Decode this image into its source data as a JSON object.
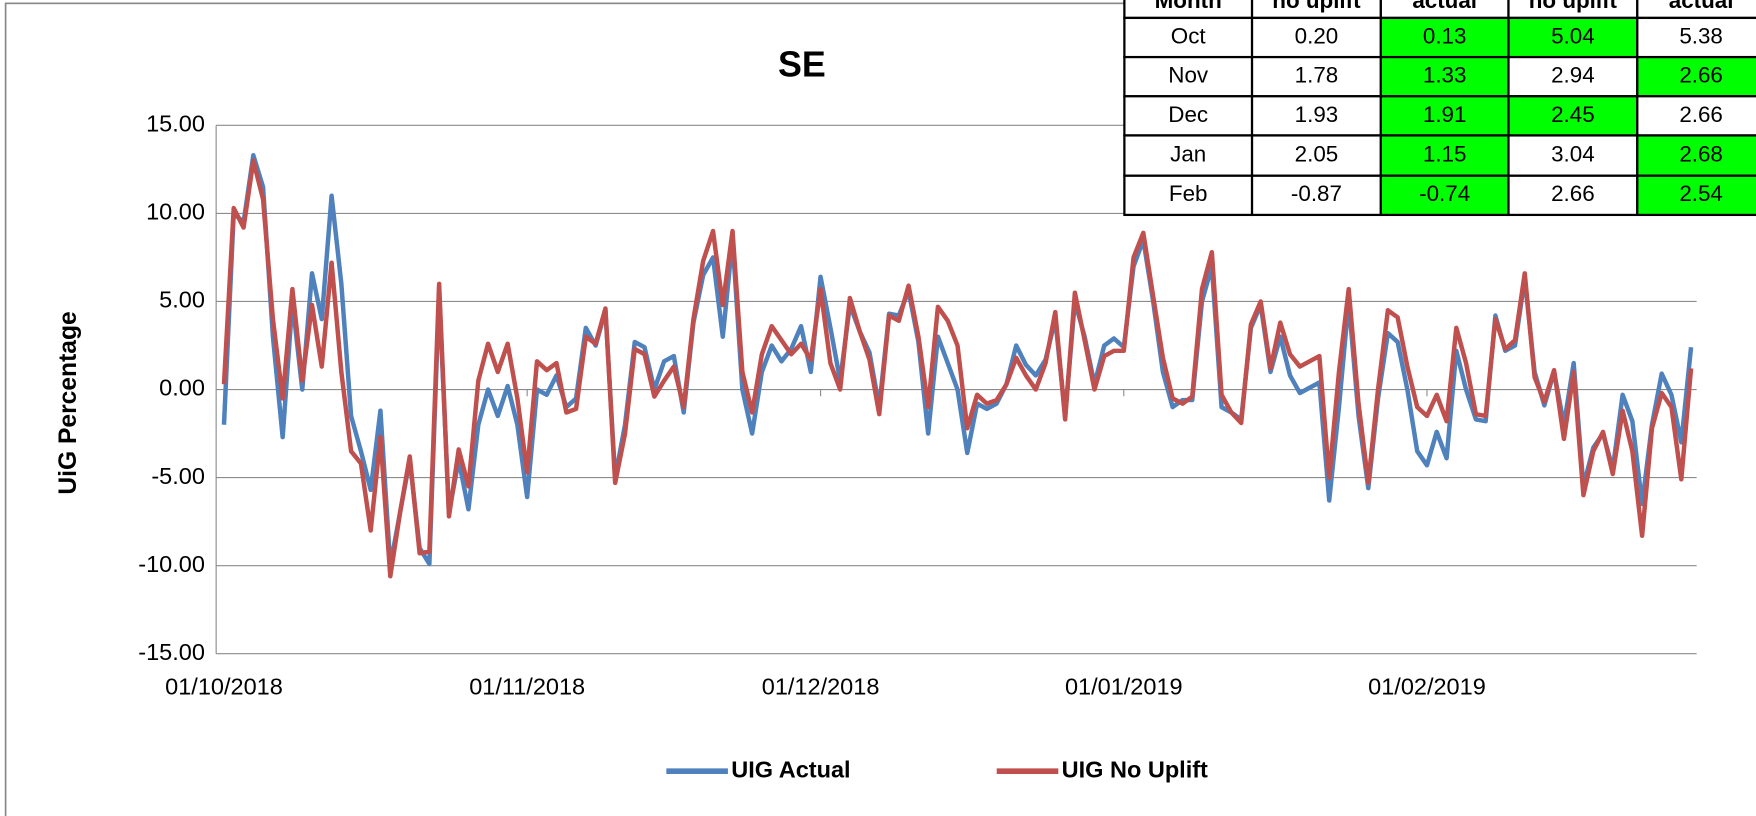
{
  "chart_data": {
    "type": "line",
    "title": "SE",
    "y_label": "UiG Percentage",
    "x": [
      "01/10/2018",
      "02/10/2018",
      "03/10/2018",
      "04/10/2018",
      "05/10/2018",
      "06/10/2018",
      "07/10/2018",
      "08/10/2018",
      "09/10/2018",
      "10/10/2018",
      "11/10/2018",
      "12/10/2018",
      "13/10/2018",
      "14/10/2018",
      "15/10/2018",
      "16/10/2018",
      "17/10/2018",
      "18/10/2018",
      "19/10/2018",
      "20/10/2018",
      "21/10/2018",
      "22/10/2018",
      "23/10/2018",
      "24/10/2018",
      "25/10/2018",
      "26/10/2018",
      "27/10/2018",
      "28/10/2018",
      "29/10/2018",
      "30/10/2018",
      "31/10/2018",
      "01/11/2018",
      "02/11/2018",
      "03/11/2018",
      "04/11/2018",
      "05/11/2018",
      "06/11/2018",
      "07/11/2018",
      "08/11/2018",
      "09/11/2018",
      "10/11/2018",
      "11/11/2018",
      "12/11/2018",
      "13/11/2018",
      "14/11/2018",
      "15/11/2018",
      "16/11/2018",
      "17/11/2018",
      "18/11/2018",
      "19/11/2018",
      "20/11/2018",
      "21/11/2018",
      "22/11/2018",
      "23/11/2018",
      "24/11/2018",
      "25/11/2018",
      "26/11/2018",
      "27/11/2018",
      "28/11/2018",
      "29/11/2018",
      "30/11/2018",
      "01/12/2018",
      "02/12/2018",
      "03/12/2018",
      "04/12/2018",
      "05/12/2018",
      "06/12/2018",
      "07/12/2018",
      "08/12/2018",
      "09/12/2018",
      "10/12/2018",
      "11/12/2018",
      "12/12/2018",
      "13/12/2018",
      "14/12/2018",
      "15/12/2018",
      "16/12/2018",
      "17/12/2018",
      "18/12/2018",
      "19/12/2018",
      "20/12/2018",
      "21/12/2018",
      "22/12/2018",
      "23/12/2018",
      "24/12/2018",
      "25/12/2018",
      "26/12/2018",
      "27/12/2018",
      "28/12/2018",
      "29/12/2018",
      "30/12/2018",
      "31/12/2018",
      "01/01/2019",
      "02/01/2019",
      "03/01/2019",
      "04/01/2019",
      "05/01/2019",
      "06/01/2019",
      "07/01/2019",
      "08/01/2019",
      "09/01/2019",
      "10/01/2019",
      "11/01/2019",
      "12/01/2019",
      "13/01/2019",
      "14/01/2019",
      "15/01/2019",
      "16/01/2019",
      "17/01/2019",
      "18/01/2019",
      "19/01/2019",
      "20/01/2019",
      "21/01/2019",
      "22/01/2019",
      "23/01/2019",
      "24/01/2019",
      "25/01/2019",
      "26/01/2019",
      "27/01/2019",
      "28/01/2019",
      "29/01/2019",
      "30/01/2019",
      "31/01/2019",
      "01/02/2019",
      "02/02/2019",
      "03/02/2019",
      "04/02/2019",
      "05/02/2019",
      "06/02/2019",
      "07/02/2019",
      "08/02/2019",
      "09/02/2019",
      "10/02/2019",
      "11/02/2019",
      "12/02/2019",
      "13/02/2019",
      "14/02/2019",
      "15/02/2019",
      "16/02/2019",
      "17/02/2019",
      "18/02/2019",
      "19/02/2019",
      "20/02/2019",
      "21/02/2019",
      "22/02/2019",
      "23/02/2019",
      "24/02/2019",
      "25/02/2019",
      "26/02/2019",
      "27/02/2019",
      "28/02/2019"
    ],
    "series": [
      {
        "name": "UIG Actual",
        "color": "#4f81bd",
        "values": [
          -2.0,
          10.0,
          9.5,
          13.3,
          11.5,
          3,
          -2.7,
          5,
          0,
          6.6,
          4,
          11,
          6,
          -1.5,
          -3.5,
          -5.7,
          -1.2,
          -10,
          -7,
          -4,
          -9,
          -9.9,
          5.5,
          -7,
          -4,
          -6.8,
          -2,
          0,
          -1.5,
          0.2,
          -2,
          -6.1,
          0,
          -0.3,
          0.8,
          -1,
          -0.5,
          3.5,
          2.5,
          4.5,
          -5,
          -2,
          2.7,
          2.4,
          0,
          1.6,
          1.9,
          -1.3,
          3.8,
          6.5,
          7.5,
          3,
          8.5,
          0,
          -2.5,
          1,
          2.5,
          1.6,
          2.3,
          3.6,
          1,
          6.4,
          3.5,
          0.5,
          4.8,
          3.3,
          2.1,
          -1,
          4.3,
          4.2,
          5.6,
          2.7,
          -2.5,
          3,
          1.5,
          0,
          -3.6,
          -0.8,
          -1.1,
          -0.8,
          0.3,
          2.5,
          1.4,
          0.8,
          1.7,
          4,
          -1.5,
          5,
          3,
          0.3,
          2.5,
          2.9,
          2.4,
          7,
          8.5,
          5,
          1,
          -1,
          -0.6,
          -0.6,
          5,
          7,
          -1,
          -1.3,
          -1.7,
          3.5,
          4.8,
          1,
          3,
          0.8,
          -0.2,
          0.1,
          0.4,
          -6.3,
          -1,
          5,
          -1.5,
          -5.6,
          -0.5,
          3.2,
          2.7,
          0,
          -3.5,
          -4.3,
          -2.4,
          -3.9,
          2.2,
          0,
          -1.7,
          -1.8,
          4.2,
          2.2,
          2.5,
          6.3,
          1,
          -0.9,
          1,
          -2,
          1.5,
          -5.5,
          -3.3,
          -2.5,
          -4.5,
          -0.3,
          -1.8,
          -6.5,
          -2,
          0.9,
          -0.3,
          -3,
          2.4
        ]
      },
      {
        "name": "UIG No Uplift",
        "color": "#c0504d",
        "values": [
          0.3,
          10.3,
          9.2,
          13,
          10.8,
          4,
          -0.5,
          5.7,
          0.5,
          4.8,
          1.3,
          7.2,
          1,
          -3.5,
          -4.2,
          -8,
          -2.7,
          -10.6,
          -7,
          -3.8,
          -9.3,
          -9.2,
          6,
          -7.2,
          -3.4,
          -5.5,
          0.5,
          2.6,
          1,
          2.6,
          -0.5,
          -4.7,
          1.6,
          1.1,
          1.5,
          -1.3,
          -1.1,
          3,
          2.6,
          4.6,
          -5.3,
          -2.5,
          2.3,
          2,
          -0.4,
          0.5,
          1.3,
          -1,
          4,
          7.3,
          9,
          4.8,
          9,
          1,
          -1.3,
          2,
          3.6,
          2.8,
          2,
          2.6,
          1.7,
          5.7,
          1.5,
          0,
          5.2,
          3.3,
          1.7,
          -1.4,
          4.2,
          3.9,
          5.9,
          3,
          -1,
          4.7,
          3.9,
          2.5,
          -2.2,
          -0.3,
          -0.8,
          -0.6,
          0.3,
          1.8,
          0.8,
          0,
          1.5,
          4.4,
          -1.7,
          5.5,
          2.8,
          0,
          1.9,
          2.2,
          2.2,
          7.5,
          8.9,
          5.3,
          1.8,
          -0.5,
          -0.8,
          -0.4,
          5.7,
          7.8,
          -0.3,
          -1.3,
          -1.9,
          3.7,
          5,
          1.2,
          3.8,
          2,
          1.3,
          1.6,
          1.9,
          -5,
          1,
          5.7,
          -0.8,
          -5.3,
          0,
          4.5,
          4.1,
          1.3,
          -1,
          -1.5,
          -0.3,
          -1.8,
          3.5,
          1.5,
          -1.4,
          -1.5,
          4,
          2.3,
          2.8,
          6.6,
          0.7,
          -0.7,
          1.1,
          -2.8,
          1,
          -6,
          -3.5,
          -2.4,
          -4.8,
          -1.2,
          -3.5,
          -8.3,
          -2.2,
          -0.2,
          -1,
          -5.1,
          1.2
        ]
      }
    ],
    "ylim": [
      -15,
      15
    ],
    "yticks": [
      {
        "value": -15,
        "label": "-15.00"
      },
      {
        "value": -10,
        "label": "-10.00"
      },
      {
        "value": -5,
        "label": "-5.00"
      },
      {
        "value": 0,
        "label": "0.00"
      },
      {
        "value": 5,
        "label": "5.00"
      },
      {
        "value": 10,
        "label": "10.00"
      },
      {
        "value": 15,
        "label": "15.00"
      }
    ],
    "xticks": [
      "01/10/2018",
      "01/11/2018",
      "01/12/2018",
      "01/01/2019",
      "01/02/2019"
    ],
    "grid": true,
    "legend": "bottom"
  },
  "table": {
    "header": [
      "Month",
      "no uplift",
      "actual",
      "no uplift",
      "actual"
    ],
    "rows": [
      [
        "Oct",
        "0.20",
        "0.13",
        "5.04",
        "5.38"
      ],
      [
        "Nov",
        "1.78",
        "1.33",
        "2.94",
        "2.66"
      ],
      [
        "Dec",
        "1.93",
        "1.91",
        "2.45",
        "2.66"
      ],
      [
        "Jan",
        "2.05",
        "1.15",
        "3.04",
        "2.68"
      ],
      [
        "Feb",
        "-0.87",
        "-0.74",
        "2.66",
        "2.54"
      ]
    ],
    "highlighted": [
      [
        false,
        false,
        true,
        true,
        false
      ],
      [
        false,
        false,
        true,
        false,
        true
      ],
      [
        false,
        false,
        true,
        true,
        false
      ],
      [
        false,
        false,
        true,
        false,
        true
      ],
      [
        false,
        false,
        true,
        false,
        true
      ]
    ],
    "highlight_color": "#00ff00"
  }
}
